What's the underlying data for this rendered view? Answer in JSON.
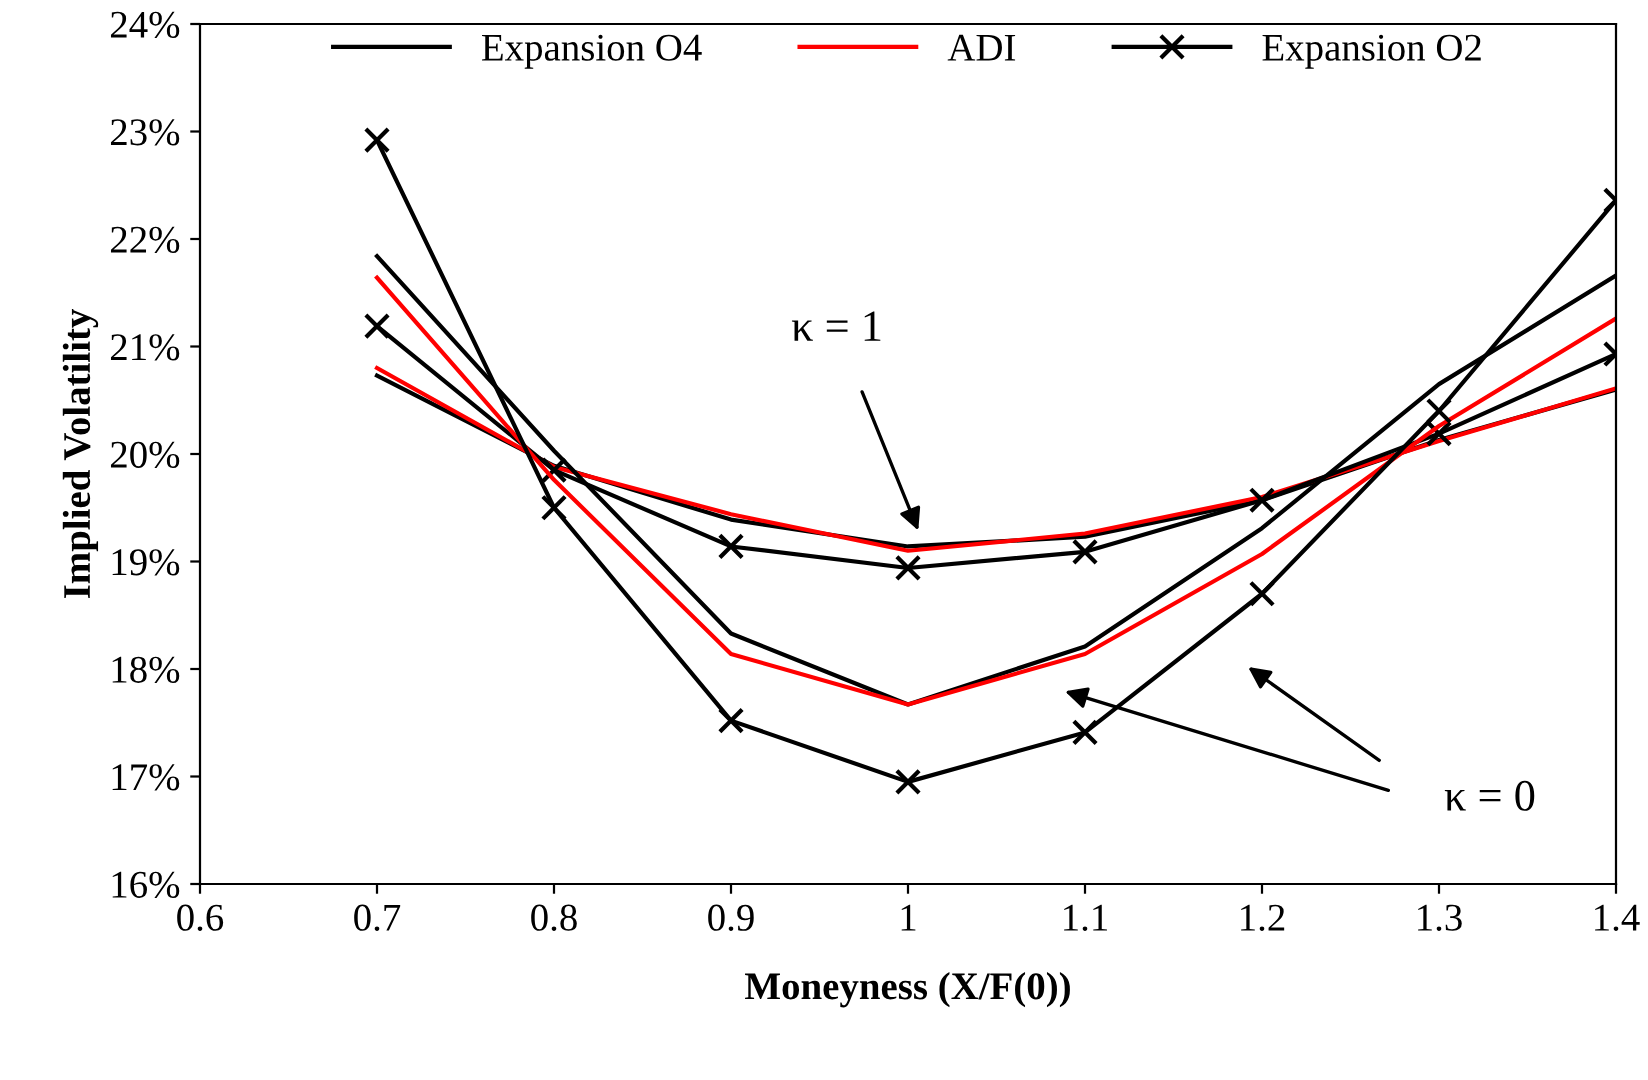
{
  "chart_data": {
    "type": "line",
    "xlabel": "Moneyness (X/F(0))",
    "ylabel": "Implied Volatility",
    "x": [
      0.7,
      0.8,
      0.9,
      1.0,
      1.1,
      1.2,
      1.3,
      1.4
    ],
    "series": [
      {
        "name": "Expansion O4",
        "color": "#000000",
        "marker": "none",
        "values": [
          20.73,
          19.89,
          19.39,
          19.14,
          19.23,
          19.57,
          20.13,
          20.6
        ]
      },
      {
        "name": "ADI",
        "color": "#ff0000",
        "marker": "none",
        "values": [
          20.8,
          19.88,
          19.44,
          19.1,
          19.26,
          19.6,
          20.12,
          20.61
        ]
      },
      {
        "name": "Expansion O2",
        "color": "#000000",
        "marker": "cross",
        "values": [
          21.19,
          19.85,
          19.14,
          18.94,
          19.09,
          19.57,
          20.19,
          20.93
        ]
      },
      {
        "color": "#000000",
        "marker": "none",
        "values": [
          21.84,
          20.03,
          18.33,
          17.67,
          18.21,
          19.31,
          20.65,
          21.66
        ]
      },
      {
        "color": "#ff0000",
        "marker": "none",
        "values": [
          21.64,
          19.76,
          18.14,
          17.67,
          18.14,
          19.07,
          20.26,
          21.26
        ]
      },
      {
        "color": "#000000",
        "marker": "cross",
        "values": [
          22.92,
          19.5,
          17.52,
          16.95,
          17.41,
          18.7,
          20.4,
          22.36
        ]
      }
    ],
    "xlim": [
      0.6,
      1.4
    ],
    "xticks": [
      0.6,
      0.7,
      0.8,
      0.9,
      1,
      1.1,
      1.2,
      1.3,
      1.4
    ],
    "ylim": [
      16,
      24
    ],
    "yticks": [
      {
        "value": 16,
        "label": "16%"
      },
      {
        "value": 17,
        "label": "17%"
      },
      {
        "value": 18,
        "label": "18%"
      },
      {
        "value": 19,
        "label": "19%"
      },
      {
        "value": 20,
        "label": "20%"
      },
      {
        "value": 21,
        "label": "21%"
      },
      {
        "value": 22,
        "label": "22%"
      },
      {
        "value": 23,
        "label": "23%"
      },
      {
        "value": 24,
        "label": "24%"
      }
    ],
    "annotations": [
      {
        "text": "κ = 1",
        "x": 1.007,
        "y": 19.24
      },
      "κ = 0"
    ],
    "grid": false,
    "legend": "top",
    "line_style": "solid"
  }
}
